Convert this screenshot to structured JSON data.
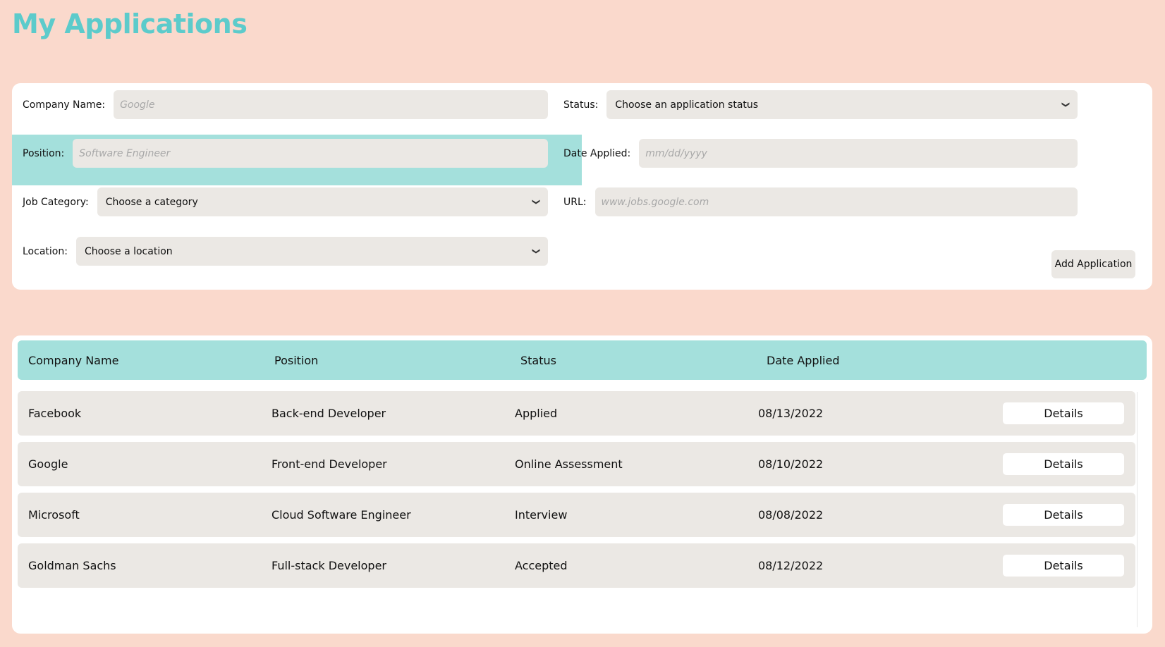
{
  "page": {
    "title": "My Applications"
  },
  "form": {
    "company_name": {
      "label": "Company Name:",
      "placeholder": "Google"
    },
    "status": {
      "label": "Status:",
      "selected": "Choose an application status"
    },
    "position": {
      "label": "Position:",
      "placeholder": "Software Engineer"
    },
    "date_applied": {
      "label": "Date Applied:",
      "placeholder": "mm/dd/yyyy"
    },
    "job_category": {
      "label": "Job Category:",
      "selected": "Choose a category"
    },
    "url": {
      "label": "URL:",
      "placeholder": "www.jobs.google.com"
    },
    "location": {
      "label": "Location:",
      "selected": "Choose a location"
    },
    "add_button": "Add Application"
  },
  "table": {
    "headers": [
      "Company Name",
      "Position",
      "Status",
      "Date Applied"
    ],
    "rows": [
      {
        "company": "Facebook",
        "position": "Back-end Developer",
        "status": "Applied",
        "date": "08/13/2022",
        "action": "Details"
      },
      {
        "company": "Google",
        "position": "Front-end Developer",
        "status": "Online Assessment",
        "date": "08/10/2022",
        "action": "Details"
      },
      {
        "company": "Microsoft",
        "position": "Cloud Software Engineer",
        "status": "Interview",
        "date": "08/08/2022",
        "action": "Details"
      },
      {
        "company": "Goldman Sachs",
        "position": "Full-stack Developer",
        "status": "Accepted",
        "date": "08/12/2022",
        "action": "Details"
      }
    ]
  },
  "colors": {
    "background": "#fad9cc",
    "accent": "#5ccbcb",
    "highlight": "#a4e0dc",
    "field": "#ebe8e4"
  },
  "icons": {
    "select_arrow": "chevron-down-icon"
  }
}
